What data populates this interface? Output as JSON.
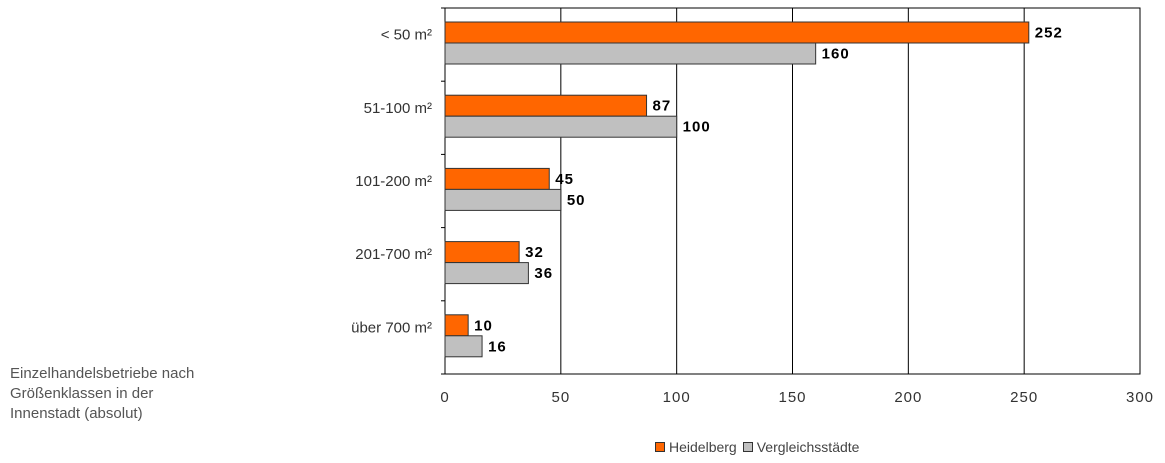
{
  "chart_data": {
    "type": "bar",
    "orientation": "horizontal",
    "title_lines": [
      "Einzelhandelsbetriebe nach",
      "Größenklassen in der",
      "Innenstadt (absolut)"
    ],
    "categories": [
      "< 50 m²",
      "51-100 m²",
      "101-200 m²",
      "201-700 m²",
      "über 700 m²"
    ],
    "series": [
      {
        "name": "Heidelberg",
        "color": "#ff6600",
        "values": [
          252,
          87,
          45,
          32,
          10
        ]
      },
      {
        "name": "Vergleichsstädte",
        "color": "#c0c0c0",
        "values": [
          160,
          100,
          50,
          36,
          16
        ]
      }
    ],
    "xlim": [
      0,
      300
    ],
    "x_ticks": [
      0,
      50,
      100,
      150,
      200,
      250,
      300
    ],
    "grid": "vertical",
    "legend_position": "bottom"
  }
}
